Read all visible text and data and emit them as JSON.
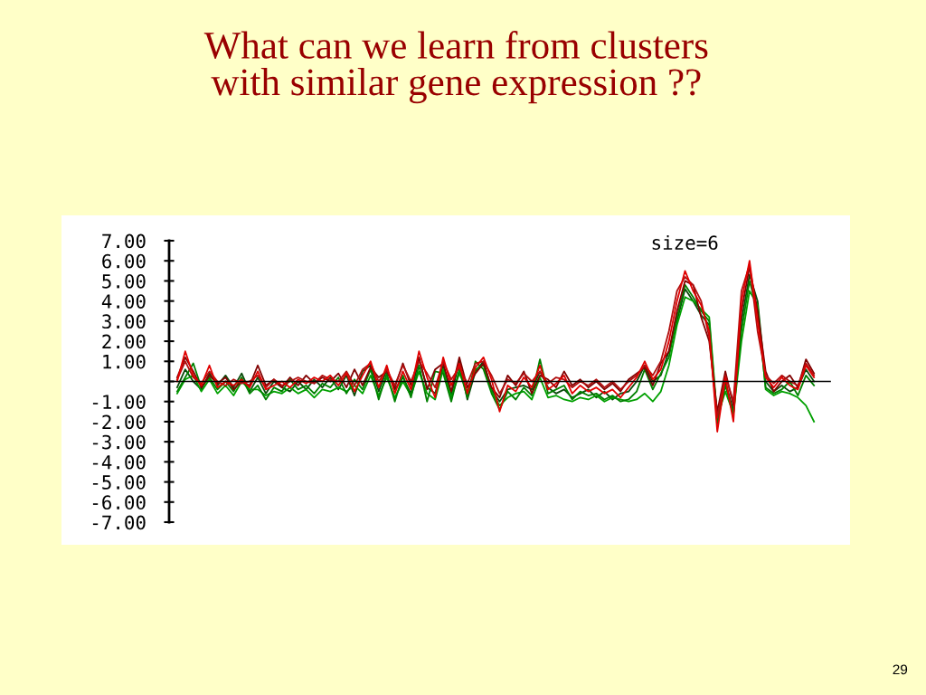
{
  "chart_data": {
    "type": "line",
    "title": "What can we learn from clusters\nwith similar gene expression ??",
    "categories": [
      null,
      null,
      null,
      null,
      null,
      null,
      null,
      null,
      null,
      null,
      null,
      null,
      null,
      null,
      null,
      null,
      null,
      null,
      null,
      null,
      null,
      null,
      null,
      null,
      null,
      null,
      null,
      null,
      null,
      null,
      null,
      null,
      null,
      null,
      null,
      null,
      null,
      null,
      null,
      null,
      null,
      null,
      null,
      null,
      null,
      null,
      null,
      null,
      null,
      null,
      null,
      null,
      null,
      null,
      null,
      null,
      null,
      null,
      null,
      null,
      null,
      null,
      null,
      null,
      null,
      null,
      null,
      null,
      null,
      null,
      null,
      null,
      null,
      null,
      null,
      null,
      null,
      null,
      null,
      null
    ],
    "series": [
      {
        "color": "#0a4a0a",
        "values": [
          -0.3,
          0.6,
          0.0,
          -0.4,
          0.4,
          -0.2,
          0.3,
          -0.3,
          0.4,
          -0.5,
          0.2,
          -0.6,
          0.0,
          -0.3,
          -0.5,
          0.0,
          -0.4,
          0.1,
          -0.3,
          0.2,
          -0.4,
          0.3,
          -0.7,
          0.5,
          0.8,
          -0.5,
          0.6,
          -0.4,
          0.2,
          -0.6,
          1.1,
          -0.3,
          -0.6,
          0.8,
          -0.7,
          1.0,
          -0.9,
          0.5,
          1.0,
          -0.4,
          -1.0,
          -0.4,
          -0.3,
          -0.2,
          -0.4,
          0.5,
          -0.3,
          -0.6,
          -0.4,
          -0.8,
          -0.6,
          -0.4,
          -0.8,
          -0.5,
          -0.9,
          -0.6,
          -0.5,
          0.0,
          0.8,
          0.0,
          0.3,
          1.5,
          3.0,
          4.6,
          4.0,
          3.3,
          2.8,
          -2.1,
          0.0,
          -1.5,
          3.0,
          5.3,
          4.0,
          0.0,
          -0.5,
          -0.2,
          -0.5,
          -0.3,
          0.6,
          0.0
        ]
      },
      {
        "color": "#00a000",
        "values": [
          -0.6,
          0.1,
          0.3,
          -0.5,
          0.1,
          -0.6,
          -0.2,
          -0.7,
          0.0,
          -0.4,
          -0.4,
          -0.7,
          -0.5,
          -0.6,
          -0.3,
          -0.6,
          -0.4,
          -0.8,
          -0.4,
          -0.5,
          -0.3,
          -0.5,
          -0.2,
          -0.6,
          0.3,
          -0.7,
          0.2,
          -0.8,
          0.0,
          -0.7,
          0.5,
          -0.6,
          -0.9,
          0.6,
          -0.8,
          0.4,
          -0.5,
          0.6,
          0.8,
          -0.5,
          -1.2,
          -0.8,
          -0.6,
          -0.5,
          -0.9,
          0.2,
          -0.8,
          -0.7,
          -0.9,
          -1.0,
          -0.8,
          -0.9,
          -0.7,
          -1.0,
          -0.8,
          -0.9,
          -1.0,
          -0.9,
          -0.6,
          -1.0,
          -0.5,
          0.8,
          2.8,
          4.2,
          4.0,
          3.6,
          3.2,
          -1.8,
          -0.5,
          -1.6,
          2.0,
          4.5,
          3.8,
          -0.4,
          -0.7,
          -0.5,
          -0.6,
          -0.8,
          -1.2,
          -2.0
        ]
      },
      {
        "color": "#008000",
        "values": [
          -0.5,
          0.2,
          0.9,
          -0.3,
          0.2,
          -0.4,
          0.0,
          -0.5,
          0.2,
          -0.6,
          -0.2,
          -0.9,
          -0.3,
          -0.5,
          0.1,
          -0.4,
          -0.2,
          -0.6,
          -0.1,
          -0.3,
          0.2,
          -0.6,
          0.1,
          -0.4,
          0.6,
          -0.9,
          0.4,
          -1.0,
          0.3,
          -0.8,
          0.8,
          -1.0,
          0.5,
          0.4,
          -1.0,
          0.6,
          -0.8,
          1.0,
          0.6,
          -0.6,
          -1.4,
          -0.5,
          -0.9,
          -0.3,
          -0.7,
          1.1,
          -0.6,
          -0.4,
          -0.2,
          -0.9,
          -0.5,
          -0.7,
          -0.6,
          -0.9,
          -0.7,
          -1.0,
          -0.9,
          -0.5,
          0.6,
          -0.4,
          0.4,
          1.2,
          3.2,
          4.8,
          4.2,
          3.5,
          3.0,
          -2.0,
          -0.2,
          -1.6,
          2.5,
          5.0,
          3.5,
          -0.3,
          -0.6,
          -0.4,
          0.0,
          -0.7,
          0.3,
          -0.2
        ]
      },
      {
        "color": "#800000",
        "values": [
          0.2,
          1.2,
          0.5,
          -0.3,
          0.3,
          -0.1,
          0.2,
          -0.4,
          0.0,
          -0.2,
          0.8,
          -0.2,
          0.1,
          -0.3,
          0.2,
          -0.2,
          0.3,
          -0.1,
          0.2,
          0.0,
          0.4,
          -0.3,
          0.6,
          -0.2,
          0.7,
          0.2,
          0.5,
          -0.3,
          0.9,
          -0.2,
          1.2,
          -0.4,
          0.6,
          0.9,
          -0.5,
          1.2,
          -0.3,
          0.4,
          0.9,
          -0.3,
          -0.8,
          0.3,
          -0.2,
          0.5,
          -0.6,
          0.3,
          0.1,
          -0.3,
          0.5,
          -0.2,
          0.1,
          -0.3,
          0.0,
          -0.4,
          -0.1,
          -0.5,
          0.1,
          0.4,
          0.7,
          -0.2,
          0.9,
          1.5,
          3.5,
          5.0,
          4.8,
          3.2,
          2.0,
          -1.5,
          0.5,
          -1.2,
          3.5,
          5.7,
          3.5,
          0.5,
          -0.5,
          0.0,
          0.3,
          -0.3,
          1.1,
          0.4
        ]
      },
      {
        "color": "#b01010",
        "values": [
          0.1,
          1.0,
          0.2,
          -0.1,
          0.5,
          0.0,
          -0.2,
          0.1,
          -0.1,
          0.0,
          0.3,
          -0.3,
          0.1,
          -0.2,
          0.0,
          0.2,
          0.0,
          -0.1,
          0.3,
          0.1,
          0.0,
          0.5,
          -0.2,
          0.6,
          0.9,
          0.0,
          0.6,
          -0.2,
          0.8,
          0.0,
          1.0,
          0.4,
          -0.3,
          1.0,
          0.1,
          0.7,
          -0.1,
          0.9,
          1.0,
          0.3,
          -0.6,
          0.1,
          -0.1,
          0.4,
          0.0,
          0.5,
          -0.1,
          0.2,
          0.1,
          -0.3,
          0.0,
          -0.2,
          0.1,
          -0.3,
          0.0,
          -0.4,
          0.0,
          0.3,
          0.8,
          0.3,
          1.0,
          2.5,
          4.5,
          5.2,
          4.8,
          4.0,
          2.2,
          -1.8,
          0.3,
          -1.0,
          4.5,
          5.8,
          2.5,
          0.3,
          -0.1,
          0.3,
          0.0,
          -0.2,
          0.9,
          0.3
        ]
      },
      {
        "color": "#e00000",
        "values": [
          0,
          1.5,
          0.3,
          -0.2,
          0.8,
          -0.3,
          0,
          -0.2,
          0.1,
          -0.3,
          0.5,
          -0.4,
          -0.2,
          0,
          -0.3,
          0.1,
          -0.1,
          0.2,
          0,
          0.3,
          -0.2,
          0.4,
          -0.5,
          0.3,
          1.0,
          -0.3,
          0.8,
          -0.6,
          0.5,
          -0.4,
          1.5,
          0.2,
          -0.8,
          1.2,
          -0.2,
          0.9,
          -0.6,
          0.7,
          1.2,
          0.1,
          -1.5,
          -0.2,
          -0.5,
          0.2,
          -0.3,
          0.8,
          -0.4,
          -0.1,
          0.3,
          -0.6,
          -0.2,
          -0.5,
          -0.3,
          -0.6,
          -0.4,
          -0.8,
          -0.3,
          0.2,
          1.0,
          0.1,
          0.6,
          2.0,
          4.0,
          5.5,
          4.5,
          3.8,
          2.5,
          -2.5,
          0.2,
          -2.0,
          4.0,
          6.0,
          3.0,
          0.2,
          -0.3,
          0.2,
          -0.2,
          -0.4,
          0.8,
          0.2
        ]
      }
    ],
    "ylim": [
      -7,
      7
    ],
    "yticks": [
      {
        "value": 7,
        "label": "7.00"
      },
      {
        "value": 6,
        "label": "6.00"
      },
      {
        "value": 5,
        "label": "5.00"
      },
      {
        "value": 4,
        "label": "4.00"
      },
      {
        "value": 3,
        "label": "3.00"
      },
      {
        "value": 2,
        "label": "2.00"
      },
      {
        "value": 1,
        "label": "1.00"
      },
      {
        "value": 0,
        "label": null
      },
      {
        "value": -1,
        "label": "-1.00"
      },
      {
        "value": -2,
        "label": "-2.00"
      },
      {
        "value": -3,
        "label": "-3.00"
      },
      {
        "value": -4,
        "label": "-4.00"
      },
      {
        "value": -5,
        "label": "-5.00"
      },
      {
        "value": -6,
        "label": "-6.00"
      },
      {
        "value": -7,
        "label": "-7.00"
      }
    ],
    "tick_labels": "y",
    "marker": "none",
    "line_style": "solid",
    "annotations": [
      "size=6",
      "29"
    ]
  }
}
